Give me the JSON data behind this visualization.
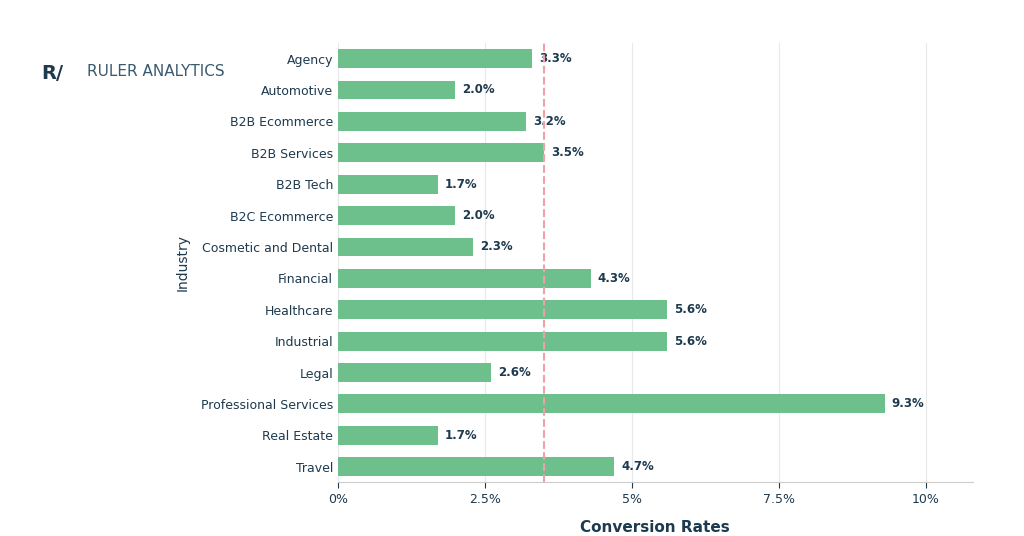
{
  "categories": [
    "Travel",
    "Real Estate",
    "Professional Services",
    "Legal",
    "Industrial",
    "Healthcare",
    "Financial",
    "Cosmetic and Dental",
    "B2C Ecommerce",
    "B2B Tech",
    "B2B Services",
    "B2B Ecommerce",
    "Automotive",
    "Agency"
  ],
  "values": [
    4.7,
    1.7,
    9.3,
    2.6,
    5.6,
    5.6,
    4.3,
    2.3,
    2.0,
    1.7,
    3.5,
    3.2,
    2.0,
    3.3
  ],
  "bar_color": "#6dbf8b",
  "label_color": "#1e3a4f",
  "vline_color": "#f0a0a8",
  "vline_x": 3.5,
  "xlabel": "Conversion Rates",
  "ylabel": "Industry",
  "xticks": [
    0,
    2.5,
    5.0,
    7.5,
    10.0
  ],
  "xtick_labels": [
    "0%",
    "2.5%",
    "5%",
    "7.5%",
    "10%"
  ],
  "xlim": [
    0,
    10.8
  ],
  "background_color": "#ffffff",
  "logo_text": "RULER ANALYTICS",
  "bar_label_fontsize": 8.5,
  "tick_fontsize": 9,
  "xlabel_fontsize": 11,
  "ylabel_fontsize": 10,
  "grid_color": "#e8e8e8",
  "spine_color": "#cccccc",
  "text_color": "#1e3a4f",
  "logo_color": "#3a5a70"
}
